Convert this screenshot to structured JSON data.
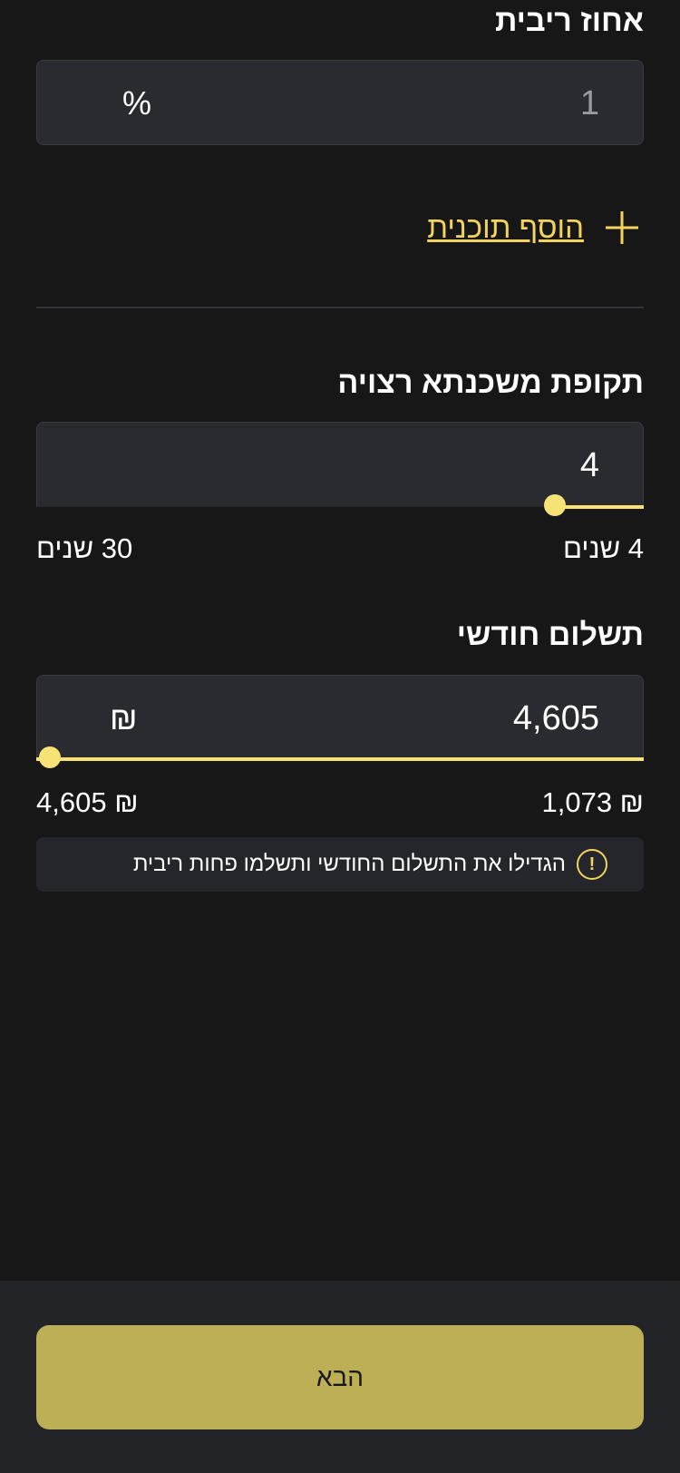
{
  "interest": {
    "label": "אחוז ריבית",
    "value": "1",
    "unit": "%"
  },
  "add_plan": {
    "label": "הוסף תוכנית",
    "icon": "plus-icon",
    "color": "#f2d35e"
  },
  "period": {
    "label": "תקופת משכנתא רצויה",
    "value": "4",
    "min_label": "4 שנים",
    "max_label": "30 שנים",
    "slider_fraction": 0.0
  },
  "monthly": {
    "label": "תשלום חודשי",
    "value": "4,605",
    "unit": "₪",
    "min_label": "₪ 1,073",
    "max_label": "₪ 4,605",
    "slider_fraction": 1.0
  },
  "tip": {
    "icon": "exclamation-icon",
    "text": "הגדילו את התשלום החודשי ותשלמו פחות ריבית"
  },
  "next_button": {
    "label": "הבא"
  },
  "colors": {
    "accent": "#f7e375",
    "button": "#bcaf55",
    "background": "#171718"
  }
}
